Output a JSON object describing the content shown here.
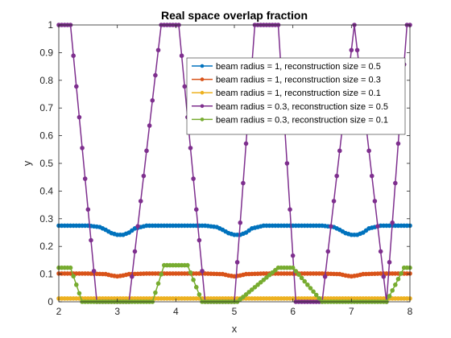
{
  "chart_data": {
    "type": "line",
    "title": "Real space overlap fraction",
    "xlabel": "x",
    "ylabel": "y",
    "xlim": [
      2,
      8
    ],
    "ylim": [
      0,
      1
    ],
    "xticks": [
      "2",
      "3",
      "4",
      "5",
      "6",
      "7",
      "8"
    ],
    "yticks": [
      "0",
      "0.1",
      "0.2",
      "0.3",
      "0.4",
      "0.5",
      "0.6",
      "0.7",
      "0.8",
      "0.9",
      "1"
    ],
    "grid": false,
    "legend_position": "top-right",
    "series": [
      {
        "name": "beam radius = 1, reconstruction size = 0.5",
        "color": "#0072BD",
        "x": [
          2.0,
          2.5,
          2.7,
          2.8,
          2.9,
          3.0,
          3.1,
          3.2,
          3.3,
          3.5,
          4.0,
          4.5,
          4.7,
          4.8,
          4.9,
          5.0,
          5.1,
          5.2,
          5.3,
          5.5,
          6.0,
          6.5,
          6.7,
          6.8,
          6.9,
          7.0,
          7.1,
          7.2,
          7.3,
          7.5,
          8.0
        ],
        "y": [
          0.275,
          0.275,
          0.27,
          0.26,
          0.248,
          0.242,
          0.242,
          0.25,
          0.265,
          0.275,
          0.275,
          0.275,
          0.27,
          0.26,
          0.248,
          0.242,
          0.242,
          0.25,
          0.265,
          0.275,
          0.275,
          0.275,
          0.27,
          0.26,
          0.248,
          0.242,
          0.242,
          0.25,
          0.265,
          0.275,
          0.275
        ]
      },
      {
        "name": "beam radius = 1, reconstruction size = 0.3",
        "color": "#D95319",
        "x": [
          2.0,
          2.5,
          2.8,
          2.9,
          3.0,
          3.1,
          3.2,
          3.5,
          4.0,
          4.5,
          4.8,
          4.9,
          5.0,
          5.1,
          5.2,
          5.5,
          6.0,
          6.5,
          6.8,
          6.9,
          7.0,
          7.1,
          7.2,
          7.5,
          8.0
        ],
        "y": [
          0.102,
          0.102,
          0.1,
          0.095,
          0.092,
          0.095,
          0.1,
          0.102,
          0.102,
          0.102,
          0.1,
          0.095,
          0.092,
          0.095,
          0.1,
          0.102,
          0.102,
          0.102,
          0.1,
          0.095,
          0.092,
          0.095,
          0.1,
          0.102,
          0.102
        ]
      },
      {
        "name": "beam radius = 1, reconstruction size = 0.1",
        "color": "#EDB120",
        "x": [
          2.0,
          8.0
        ],
        "y": [
          0.012,
          0.012
        ]
      },
      {
        "name": "beam radius = 0.3, reconstruction size = 0.5",
        "color": "#7E2F8E",
        "x": [
          2.0,
          2.2,
          2.65,
          3.2,
          3.75,
          4.05,
          4.5,
          5.0,
          5.35,
          5.75,
          6.05,
          6.5,
          7.05,
          7.6,
          7.95,
          8.0
        ],
        "y": [
          1.0,
          1.0,
          0.0,
          0.0,
          1.0,
          1.0,
          0.0,
          0.0,
          1.0,
          1.0,
          0.0,
          0.0,
          1.0,
          0.0,
          1.0,
          1.0
        ]
      },
      {
        "name": "beam radius = 0.3, reconstruction size = 0.1",
        "color": "#77AC30",
        "x": [
          2.0,
          2.2,
          2.4,
          2.95,
          3.6,
          3.8,
          4.2,
          4.45,
          5.05,
          5.75,
          6.0,
          6.5,
          7.1,
          7.6,
          7.9,
          8.0
        ],
        "y": [
          0.123,
          0.123,
          0.0,
          0.0,
          0.0,
          0.132,
          0.132,
          0.0,
          0.0,
          0.123,
          0.123,
          0.0,
          0.0,
          0.0,
          0.123,
          0.123
        ]
      }
    ]
  }
}
